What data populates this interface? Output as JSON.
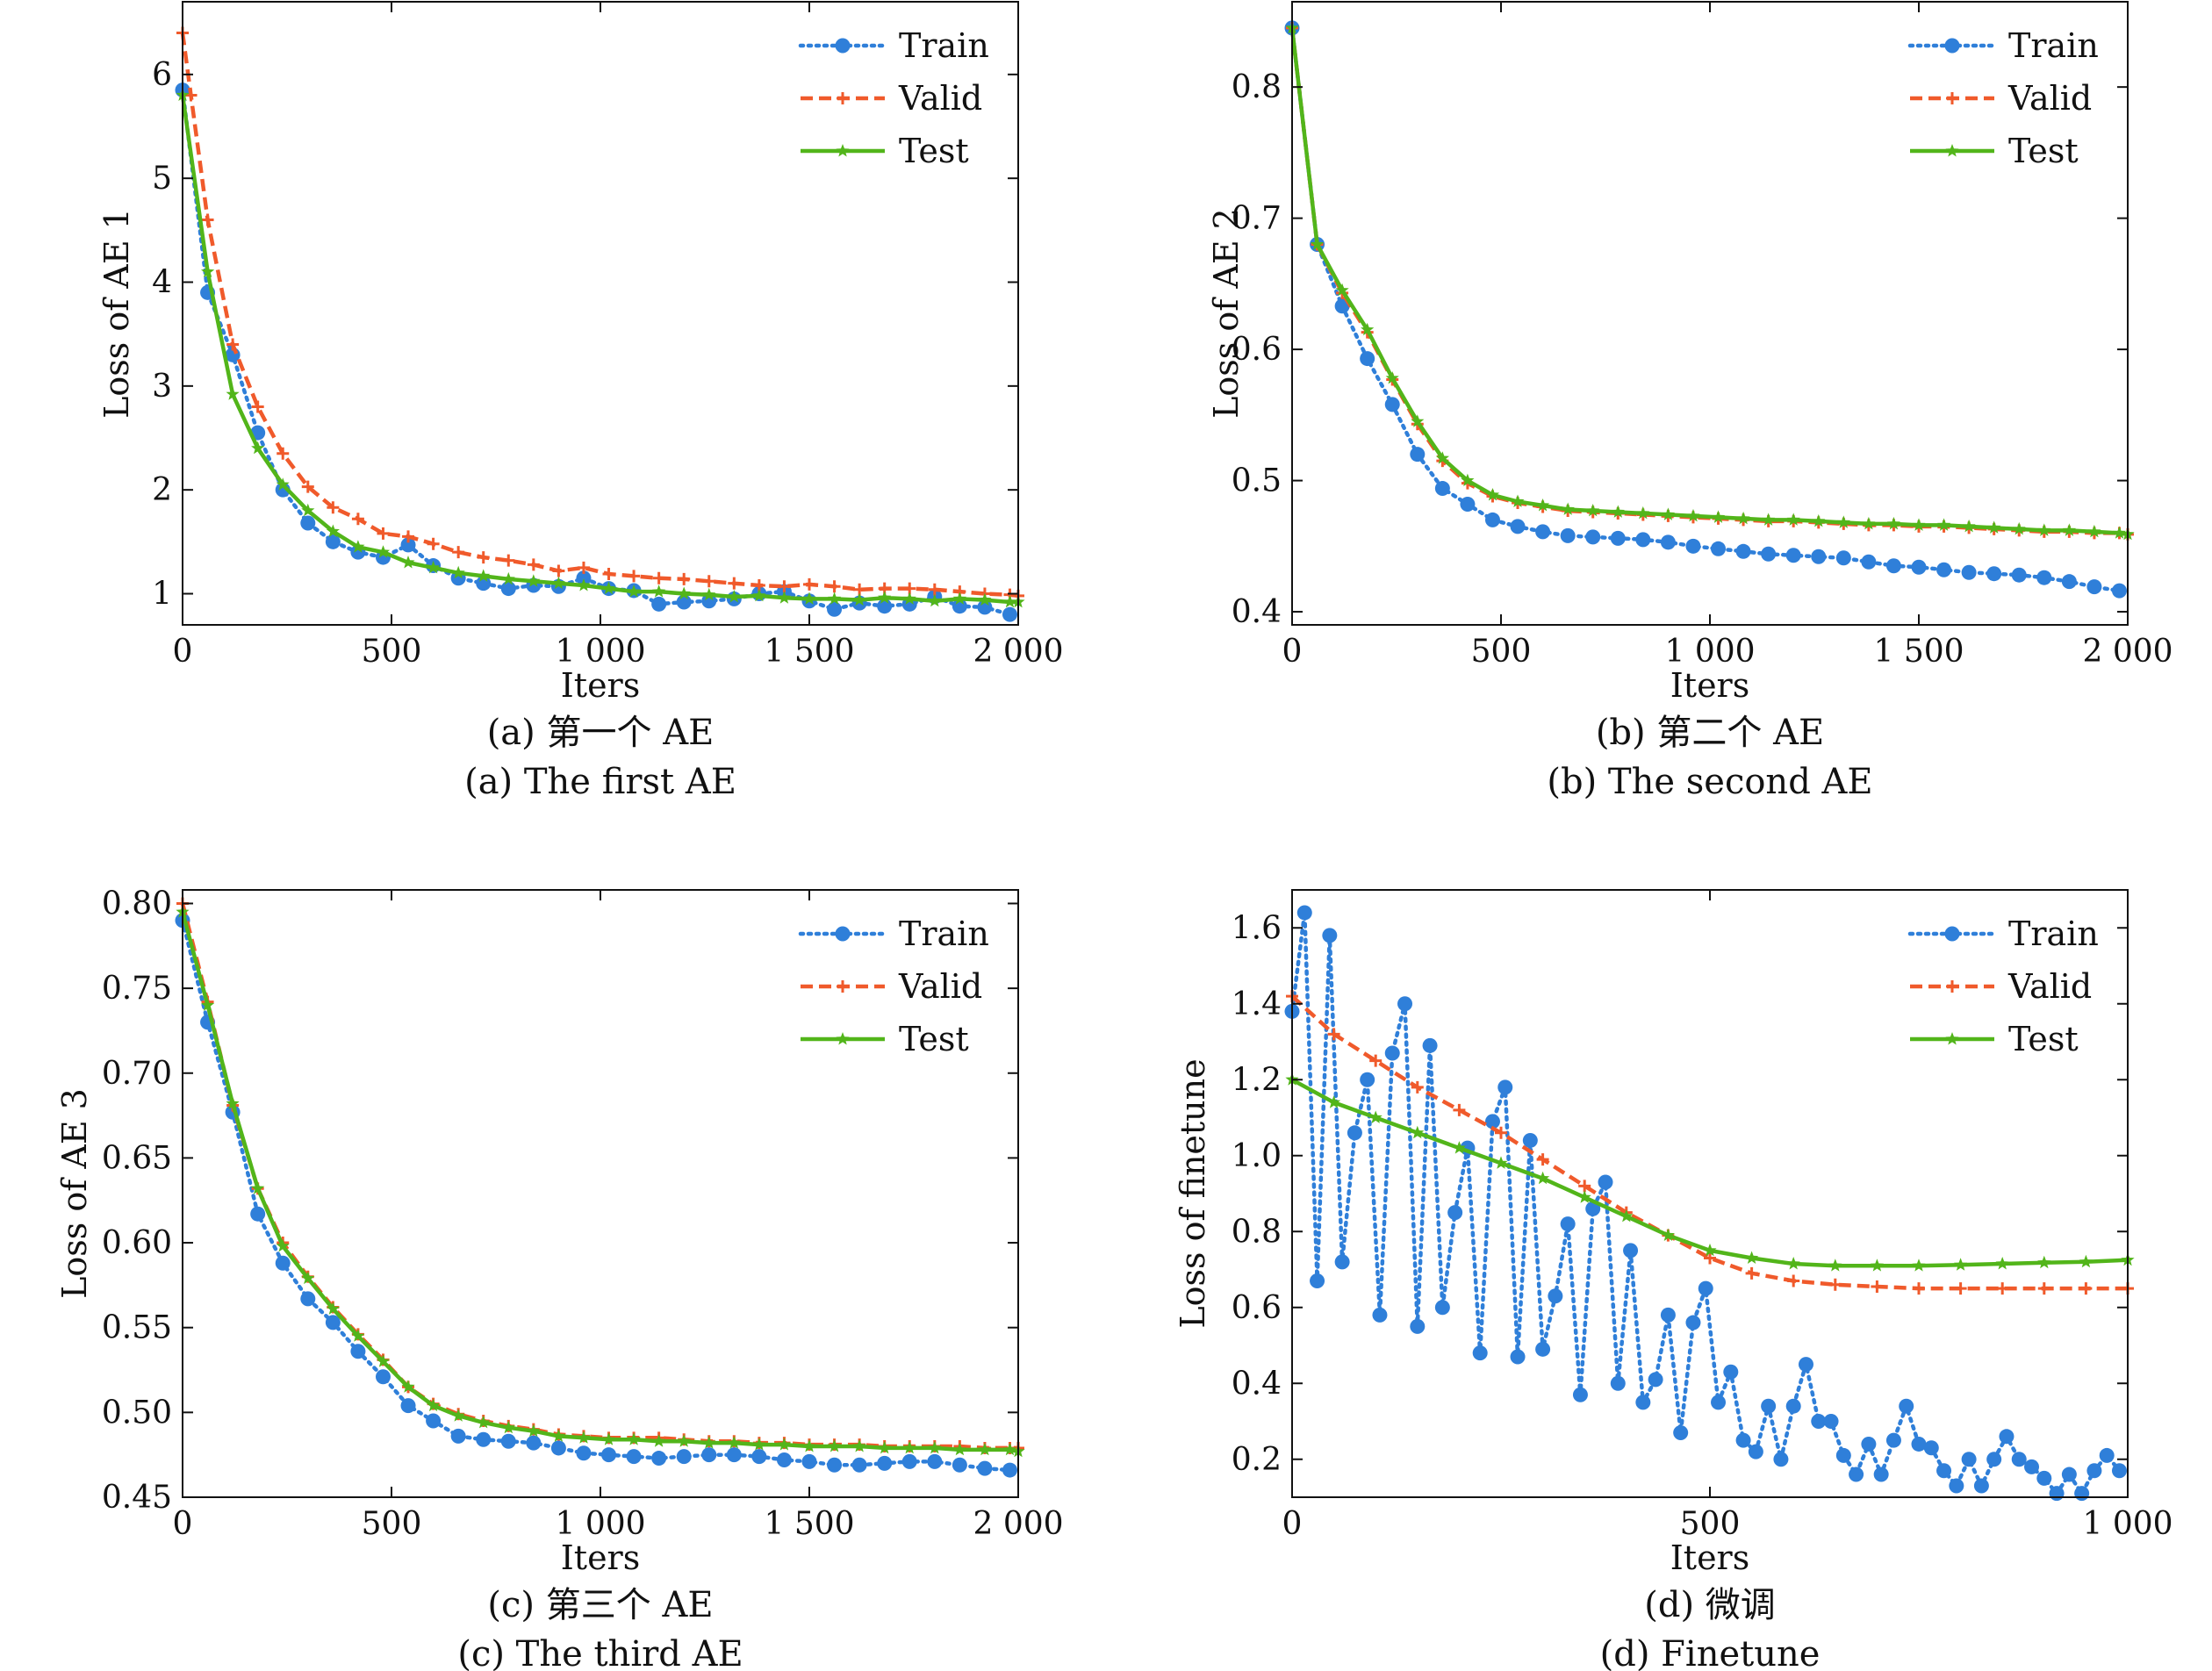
{
  "colors": {
    "train": "#2f7fd9",
    "valid": "#f05a2b",
    "test": "#52b51a",
    "axis": "#111111"
  },
  "chart_data": [
    {
      "type": "line",
      "caption_cn": "(a) 第一个 AE",
      "caption_en": "(a) The first AE",
      "xlabel": "Iters",
      "ylabel": "Loss of AE 1",
      "xlim": [
        0,
        2000
      ],
      "ylim": [
        0.7,
        6.7
      ],
      "xticks": [
        0,
        500,
        1000,
        1500,
        2000
      ],
      "xtick_labels": [
        "0",
        "500",
        "1 000",
        "1 500",
        "2 000"
      ],
      "yticks": [
        1,
        2,
        3,
        4,
        5,
        6
      ],
      "ytick_labels": [
        "1",
        "2",
        "3",
        "4",
        "5",
        "6"
      ],
      "legend_position": "top-right",
      "series": [
        {
          "name": "Train",
          "style": "dotted-circle",
          "x": [
            0,
            60,
            120,
            180,
            240,
            300,
            360,
            420,
            480,
            540,
            600,
            660,
            720,
            780,
            840,
            900,
            960,
            1020,
            1080,
            1140,
            1200,
            1260,
            1320,
            1380,
            1440,
            1500,
            1560,
            1620,
            1680,
            1740,
            1800,
            1860,
            1920,
            1980
          ],
          "y": [
            5.85,
            3.9,
            3.3,
            2.55,
            2.0,
            1.68,
            1.5,
            1.4,
            1.35,
            1.47,
            1.27,
            1.15,
            1.1,
            1.05,
            1.08,
            1.07,
            1.15,
            1.05,
            1.03,
            0.9,
            0.92,
            0.93,
            0.95,
            1.0,
            1.02,
            0.93,
            0.85,
            0.91,
            0.88,
            0.9,
            0.97,
            0.88,
            0.87,
            0.8
          ]
        },
        {
          "name": "Valid",
          "style": "dashed-plus",
          "x": [
            0,
            20,
            60,
            120,
            180,
            240,
            300,
            360,
            420,
            480,
            540,
            600,
            660,
            720,
            780,
            840,
            900,
            960,
            1020,
            1080,
            1140,
            1200,
            1260,
            1320,
            1380,
            1440,
            1500,
            1560,
            1620,
            1680,
            1740,
            1800,
            1860,
            1920,
            1980,
            2000
          ],
          "y": [
            6.4,
            5.8,
            4.6,
            3.4,
            2.8,
            2.35,
            2.03,
            1.83,
            1.72,
            1.58,
            1.55,
            1.48,
            1.4,
            1.35,
            1.32,
            1.28,
            1.22,
            1.25,
            1.19,
            1.17,
            1.15,
            1.14,
            1.12,
            1.1,
            1.08,
            1.07,
            1.09,
            1.07,
            1.04,
            1.05,
            1.05,
            1.04,
            1.02,
            1.0,
            0.99,
            0.98
          ]
        },
        {
          "name": "Test",
          "style": "solid-star",
          "x": [
            0,
            60,
            120,
            180,
            240,
            300,
            360,
            420,
            480,
            540,
            600,
            660,
            720,
            780,
            840,
            900,
            960,
            1020,
            1080,
            1140,
            1200,
            1260,
            1320,
            1380,
            1440,
            1500,
            1560,
            1620,
            1680,
            1740,
            1800,
            1860,
            1920,
            1980,
            2000
          ],
          "y": [
            5.8,
            4.1,
            2.92,
            2.4,
            2.05,
            1.8,
            1.6,
            1.45,
            1.4,
            1.3,
            1.25,
            1.2,
            1.17,
            1.14,
            1.12,
            1.1,
            1.08,
            1.05,
            1.02,
            1.02,
            1.0,
            0.99,
            0.97,
            0.98,
            0.96,
            0.95,
            0.95,
            0.94,
            0.96,
            0.95,
            0.93,
            0.95,
            0.94,
            0.92,
            0.92
          ]
        }
      ]
    },
    {
      "type": "line",
      "caption_cn": "(b) 第二个 AE",
      "caption_en": "(b) The second AE",
      "xlabel": "Iters",
      "ylabel": "Loss of AE 2",
      "xlim": [
        0,
        2000
      ],
      "ylim": [
        0.39,
        0.865
      ],
      "xticks": [
        0,
        500,
        1000,
        1500,
        2000
      ],
      "xtick_labels": [
        "0",
        "500",
        "1 000",
        "1 500",
        "2 000"
      ],
      "yticks": [
        0.4,
        0.5,
        0.6,
        0.7,
        0.8
      ],
      "ytick_labels": [
        "0.4",
        "0.5",
        "0.6",
        "0.7",
        "0.8"
      ],
      "legend_position": "top-right",
      "series": [
        {
          "name": "Train",
          "style": "dotted-circle",
          "x": [
            0,
            60,
            120,
            180,
            240,
            300,
            360,
            420,
            480,
            540,
            600,
            660,
            720,
            780,
            840,
            900,
            960,
            1020,
            1080,
            1140,
            1200,
            1260,
            1320,
            1380,
            1440,
            1500,
            1560,
            1620,
            1680,
            1740,
            1800,
            1860,
            1920,
            1980
          ],
          "y": [
            0.845,
            0.68,
            0.633,
            0.593,
            0.558,
            0.52,
            0.494,
            0.482,
            0.47,
            0.465,
            0.461,
            0.458,
            0.457,
            0.456,
            0.455,
            0.453,
            0.45,
            0.448,
            0.446,
            0.444,
            0.443,
            0.442,
            0.441,
            0.438,
            0.435,
            0.434,
            0.432,
            0.43,
            0.429,
            0.428,
            0.426,
            0.423,
            0.419,
            0.416
          ]
        },
        {
          "name": "Valid",
          "style": "dashed-plus",
          "x": [
            0,
            60,
            120,
            180,
            240,
            300,
            360,
            420,
            480,
            540,
            600,
            660,
            720,
            780,
            840,
            900,
            960,
            1020,
            1080,
            1140,
            1200,
            1260,
            1320,
            1380,
            1440,
            1500,
            1560,
            1620,
            1680,
            1740,
            1800,
            1860,
            1920,
            1980,
            2000
          ],
          "y": [
            0.845,
            0.68,
            0.643,
            0.613,
            0.577,
            0.543,
            0.515,
            0.498,
            0.488,
            0.483,
            0.48,
            0.477,
            0.476,
            0.475,
            0.474,
            0.473,
            0.472,
            0.471,
            0.47,
            0.469,
            0.469,
            0.468,
            0.467,
            0.466,
            0.466,
            0.465,
            0.465,
            0.464,
            0.463,
            0.462,
            0.461,
            0.461,
            0.46,
            0.46,
            0.459
          ]
        },
        {
          "name": "Test",
          "style": "solid-star",
          "x": [
            0,
            60,
            120,
            180,
            240,
            300,
            360,
            420,
            480,
            540,
            600,
            660,
            720,
            780,
            840,
            900,
            960,
            1020,
            1080,
            1140,
            1200,
            1260,
            1320,
            1380,
            1440,
            1500,
            1560,
            1620,
            1680,
            1740,
            1800,
            1860,
            1920,
            1980,
            2000
          ],
          "y": [
            0.845,
            0.68,
            0.645,
            0.615,
            0.578,
            0.545,
            0.517,
            0.5,
            0.489,
            0.484,
            0.481,
            0.478,
            0.477,
            0.476,
            0.475,
            0.474,
            0.473,
            0.472,
            0.471,
            0.47,
            0.47,
            0.469,
            0.468,
            0.467,
            0.467,
            0.466,
            0.466,
            0.465,
            0.464,
            0.463,
            0.462,
            0.462,
            0.461,
            0.46,
            0.459
          ]
        }
      ]
    },
    {
      "type": "line",
      "caption_cn": "(c) 第三个 AE",
      "caption_en": "(c) The third AE",
      "xlabel": "Iters",
      "ylabel": "Loss of AE 3",
      "xlim": [
        0,
        2000
      ],
      "ylim": [
        0.45,
        0.808
      ],
      "xticks": [
        0,
        500,
        1000,
        1500,
        2000
      ],
      "xtick_labels": [
        "0",
        "500",
        "1 000",
        "1 500",
        "2 000"
      ],
      "yticks": [
        0.45,
        0.5,
        0.55,
        0.6,
        0.65,
        0.7,
        0.75,
        0.8
      ],
      "ytick_labels": [
        "0.45",
        "0.50",
        "0.55",
        "0.60",
        "0.65",
        "0.70",
        "0.75",
        "0.80"
      ],
      "legend_position": "top-right",
      "series": [
        {
          "name": "Train",
          "style": "dotted-circle",
          "x": [
            0,
            60,
            120,
            180,
            240,
            300,
            360,
            420,
            480,
            540,
            600,
            660,
            720,
            780,
            840,
            900,
            960,
            1020,
            1080,
            1140,
            1200,
            1260,
            1320,
            1380,
            1440,
            1500,
            1560,
            1620,
            1680,
            1740,
            1800,
            1860,
            1920,
            1980
          ],
          "y": [
            0.79,
            0.73,
            0.677,
            0.617,
            0.588,
            0.567,
            0.553,
            0.536,
            0.521,
            0.504,
            0.495,
            0.486,
            0.484,
            0.483,
            0.482,
            0.479,
            0.476,
            0.475,
            0.474,
            0.473,
            0.474,
            0.475,
            0.475,
            0.474,
            0.472,
            0.471,
            0.469,
            0.469,
            0.47,
            0.471,
            0.471,
            0.469,
            0.467,
            0.466
          ]
        },
        {
          "name": "Valid",
          "style": "dashed-plus",
          "x": [
            0,
            60,
            120,
            180,
            240,
            300,
            360,
            420,
            480,
            540,
            600,
            660,
            720,
            780,
            840,
            900,
            960,
            1020,
            1080,
            1140,
            1200,
            1260,
            1320,
            1380,
            1440,
            1500,
            1560,
            1620,
            1680,
            1740,
            1800,
            1860,
            1920,
            1980,
            2000
          ],
          "y": [
            0.8,
            0.742,
            0.681,
            0.632,
            0.6,
            0.58,
            0.562,
            0.546,
            0.531,
            0.515,
            0.505,
            0.499,
            0.495,
            0.492,
            0.49,
            0.487,
            0.486,
            0.485,
            0.485,
            0.485,
            0.484,
            0.483,
            0.483,
            0.482,
            0.482,
            0.481,
            0.481,
            0.481,
            0.48,
            0.48,
            0.48,
            0.48,
            0.479,
            0.479,
            0.479
          ]
        },
        {
          "name": "Test",
          "style": "solid-star",
          "x": [
            0,
            60,
            120,
            180,
            240,
            300,
            360,
            420,
            480,
            540,
            600,
            660,
            720,
            780,
            840,
            900,
            960,
            1020,
            1080,
            1140,
            1200,
            1260,
            1320,
            1380,
            1440,
            1500,
            1560,
            1620,
            1680,
            1740,
            1800,
            1860,
            1920,
            1980,
            2000
          ],
          "y": [
            0.795,
            0.74,
            0.682,
            0.632,
            0.598,
            0.579,
            0.561,
            0.545,
            0.53,
            0.515,
            0.504,
            0.498,
            0.494,
            0.491,
            0.489,
            0.486,
            0.485,
            0.484,
            0.484,
            0.483,
            0.483,
            0.482,
            0.482,
            0.481,
            0.481,
            0.48,
            0.48,
            0.48,
            0.479,
            0.479,
            0.479,
            0.478,
            0.478,
            0.478,
            0.477
          ]
        }
      ]
    },
    {
      "type": "line",
      "caption_cn": "(d) 微调",
      "caption_en": "(d) Finetune",
      "xlabel": "Iters",
      "ylabel": "Loss of finetune",
      "xlim": [
        0,
        1000
      ],
      "ylim": [
        0.1,
        1.7
      ],
      "xticks": [
        0,
        500,
        1000
      ],
      "xtick_labels": [
        "0",
        "500",
        "1 000"
      ],
      "yticks": [
        0.2,
        0.4,
        0.6,
        0.8,
        1.0,
        1.2,
        1.4,
        1.6
      ],
      "ytick_labels": [
        "0.2",
        "0.4",
        "0.6",
        "0.8",
        "1.0",
        "1.2",
        "1.4",
        "1.6"
      ],
      "legend_position": "top-right",
      "series": [
        {
          "name": "Train",
          "style": "dotted-circle",
          "x": [
            0,
            15,
            30,
            45,
            60,
            75,
            90,
            105,
            120,
            135,
            150,
            165,
            180,
            195,
            210,
            225,
            240,
            255,
            270,
            285,
            300,
            315,
            330,
            345,
            360,
            375,
            390,
            405,
            420,
            435,
            450,
            465,
            480,
            495,
            510,
            525,
            540,
            555,
            570,
            585,
            600,
            615,
            630,
            645,
            660,
            675,
            690,
            705,
            720,
            735,
            750,
            765,
            780,
            795,
            810,
            825,
            840,
            855,
            870,
            885,
            900,
            915,
            930,
            945,
            960,
            975,
            990
          ],
          "y": [
            1.38,
            1.64,
            0.67,
            1.58,
            0.72,
            1.06,
            1.2,
            0.58,
            1.27,
            1.4,
            0.55,
            1.29,
            0.6,
            0.85,
            1.02,
            0.48,
            1.09,
            1.18,
            0.47,
            1.04,
            0.49,
            0.63,
            0.82,
            0.37,
            0.86,
            0.93,
            0.4,
            0.75,
            0.35,
            0.41,
            0.58,
            0.27,
            0.56,
            0.65,
            0.35,
            0.43,
            0.25,
            0.22,
            0.34,
            0.2,
            0.34,
            0.45,
            0.3,
            0.3,
            0.21,
            0.16,
            0.24,
            0.16,
            0.25,
            0.34,
            0.24,
            0.23,
            0.17,
            0.13,
            0.2,
            0.13,
            0.2,
            0.26,
            0.2,
            0.18,
            0.15,
            0.11,
            0.16,
            0.11,
            0.17,
            0.21,
            0.17
          ]
        },
        {
          "name": "Valid",
          "style": "dashed-plus",
          "x": [
            0,
            50,
            100,
            150,
            200,
            250,
            300,
            350,
            400,
            450,
            500,
            550,
            600,
            650,
            700,
            750,
            800,
            850,
            900,
            950,
            1000
          ],
          "y": [
            1.42,
            1.32,
            1.25,
            1.18,
            1.12,
            1.06,
            0.99,
            0.92,
            0.85,
            0.79,
            0.73,
            0.69,
            0.67,
            0.66,
            0.655,
            0.65,
            0.65,
            0.65,
            0.65,
            0.65,
            0.65
          ]
        },
        {
          "name": "Test",
          "style": "solid-star",
          "x": [
            0,
            50,
            100,
            150,
            200,
            250,
            300,
            350,
            400,
            450,
            500,
            550,
            600,
            650,
            700,
            750,
            800,
            850,
            900,
            950,
            1000
          ],
          "y": [
            1.2,
            1.14,
            1.1,
            1.06,
            1.02,
            0.98,
            0.94,
            0.89,
            0.84,
            0.79,
            0.75,
            0.73,
            0.715,
            0.71,
            0.71,
            0.71,
            0.712,
            0.715,
            0.718,
            0.72,
            0.725
          ]
        }
      ]
    }
  ]
}
